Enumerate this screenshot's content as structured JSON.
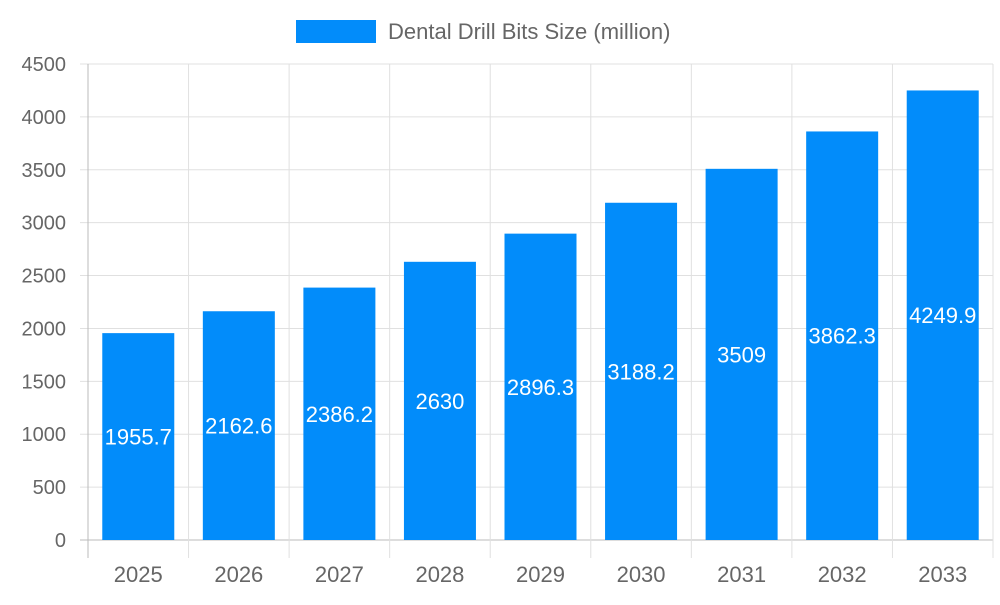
{
  "chart_data": {
    "type": "bar",
    "title": "",
    "xlabel": "",
    "ylabel": "",
    "categories": [
      "2025",
      "2026",
      "2027",
      "2028",
      "2029",
      "2030",
      "2031",
      "2032",
      "2033"
    ],
    "series": [
      {
        "name": "Dental Drill Bits Size (million)",
        "values": [
          1955.7,
          2162.6,
          2386.2,
          2630,
          2896.3,
          3188.2,
          3509,
          3862.3,
          4249.9
        ],
        "color": "#028cfa"
      }
    ],
    "ylim": [
      0,
      4500
    ],
    "yticks": [
      0,
      500,
      1000,
      1500,
      2000,
      2500,
      3000,
      3500,
      4000,
      4500
    ],
    "grid": true,
    "legend": "top-center",
    "data_labels": "inside-center"
  }
}
